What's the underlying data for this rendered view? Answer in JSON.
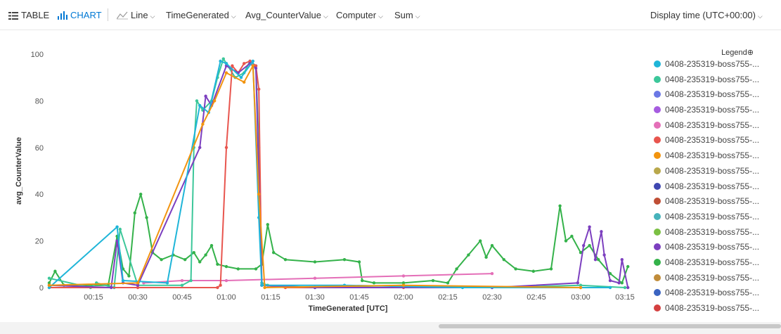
{
  "toolbar": {
    "table_label": "TABLE",
    "chart_label": "CHART",
    "line_label": "Line",
    "x_field": "TimeGenerated",
    "y_field": "Avg_CounterValue",
    "split_field": "Computer",
    "aggregation": "Sum",
    "display_time": "Display time (UTC+00:00)"
  },
  "legend": {
    "title": "Legend",
    "items": [
      {
        "label": "0408-235319-boss755-...",
        "color": "#1fb5d8"
      },
      {
        "label": "0408-235319-boss755-...",
        "color": "#3cc79a"
      },
      {
        "label": "0408-235319-boss755-...",
        "color": "#6b78e5"
      },
      {
        "label": "0408-235319-boss755-...",
        "color": "#a65ce0"
      },
      {
        "label": "0408-235319-boss755-...",
        "color": "#e46fb8"
      },
      {
        "label": "0408-235319-boss755-...",
        "color": "#e8554e"
      },
      {
        "label": "0408-235319-boss755-...",
        "color": "#f2940f"
      },
      {
        "label": "0408-235319-boss755-...",
        "color": "#b9a84b"
      },
      {
        "label": "0408-235319-boss755-...",
        "color": "#3f47b1"
      },
      {
        "label": "0408-235319-boss755-...",
        "color": "#bf4e35"
      },
      {
        "label": "0408-235319-boss755-...",
        "color": "#47b3bb"
      },
      {
        "label": "0408-235319-boss755-...",
        "color": "#7bc043"
      },
      {
        "label": "0408-235319-boss755-...",
        "color": "#7c3fbf"
      },
      {
        "label": "0408-235319-boss755-...",
        "color": "#34b24a"
      },
      {
        "label": "0408-235319-boss755-...",
        "color": "#c08c3a"
      },
      {
        "label": "0408-235319-boss755-...",
        "color": "#3b64c1"
      },
      {
        "label": "0408-235319-boss755-...",
        "color": "#d44040"
      }
    ]
  },
  "chart_data": {
    "type": "line",
    "xlabel": "TimeGenerated [UTC]",
    "ylabel": "avg_CounterValue",
    "ylim": [
      0,
      100
    ],
    "yticks": [
      0,
      20,
      40,
      60,
      80,
      100
    ],
    "xlim": [
      "00:00",
      "03:20"
    ],
    "xticks": [
      "00:15",
      "00:30",
      "00:45",
      "01:00",
      "01:15",
      "01:30",
      "01:45",
      "02:00",
      "02:15",
      "02:30",
      "02:45",
      "03:00",
      "03:15"
    ],
    "grid": false,
    "legend_position": "right",
    "series": [
      {
        "color": "#34b24a",
        "x": [
          "00:00",
          "00:02",
          "00:05",
          "00:20",
          "00:23",
          "00:25",
          "00:27",
          "00:29",
          "00:31",
          "00:33",
          "00:35",
          "00:38",
          "00:42",
          "00:46",
          "00:49",
          "00:51",
          "00:53",
          "00:55",
          "00:57",
          "01:00",
          "01:04",
          "01:10",
          "01:12",
          "01:14",
          "01:16",
          "01:20",
          "01:30",
          "01:40",
          "01:45",
          "01:46",
          "01:50",
          "02:00",
          "02:10",
          "02:15",
          "02:18",
          "02:22",
          "02:26",
          "02:28",
          "02:30",
          "02:34",
          "02:38",
          "02:44",
          "02:50",
          "02:53",
          "02:55",
          "02:57",
          "03:00",
          "03:03",
          "03:06",
          "03:10",
          "03:14",
          "03:16"
        ],
        "y": [
          2,
          7,
          1,
          1,
          22,
          8,
          5,
          32,
          40,
          30,
          15,
          12,
          14,
          12,
          15,
          11,
          14,
          18,
          10,
          9,
          8,
          8,
          10,
          27,
          15,
          12,
          11,
          12,
          11,
          3,
          2,
          2,
          3,
          2,
          8,
          14,
          20,
          13,
          18,
          12,
          8,
          7,
          8,
          35,
          20,
          22,
          15,
          18,
          12,
          6,
          2,
          9
        ]
      },
      {
        "color": "#e46fb8",
        "x": [
          "00:32",
          "00:45",
          "01:00",
          "01:30",
          "02:00",
          "02:30"
        ],
        "y": [
          2,
          3,
          3,
          4,
          5,
          6
        ]
      },
      {
        "color": "#3cc79a",
        "x": [
          "00:00",
          "00:14",
          "00:16",
          "00:22",
          "00:24",
          "00:30",
          "00:45",
          "00:48",
          "00:49",
          "00:50",
          "00:52",
          "00:55",
          "00:57",
          "00:59",
          "01:00",
          "01:03",
          "01:06",
          "01:08",
          "01:10",
          "01:11",
          "01:12",
          "01:14",
          "01:30",
          "02:00",
          "02:30",
          "03:00",
          "03:15"
        ],
        "y": [
          4,
          0,
          2,
          0,
          25,
          1,
          1,
          3,
          60,
          80,
          76,
          80,
          90,
          98,
          96,
          90,
          92,
          97,
          95,
          60,
          2,
          1,
          0,
          1,
          0,
          1,
          0
        ]
      },
      {
        "color": "#e8554e",
        "x": [
          "00:00",
          "00:30",
          "00:57",
          "00:58",
          "01:00",
          "01:02",
          "01:04",
          "01:06",
          "01:08",
          "01:10",
          "01:11",
          "01:12",
          "01:20",
          "02:00",
          "03:00"
        ],
        "y": [
          0,
          0,
          0,
          1,
          60,
          95,
          92,
          96,
          97,
          95,
          85,
          1,
          0,
          0,
          0
        ]
      },
      {
        "color": "#7c3fbf",
        "x": [
          "00:00",
          "00:21",
          "00:23",
          "00:25",
          "00:30",
          "00:51",
          "00:53",
          "00:55",
          "01:00",
          "01:04",
          "01:08",
          "01:10",
          "01:12",
          "01:30",
          "02:30",
          "02:59",
          "03:01",
          "03:03",
          "03:05",
          "03:07",
          "03:08",
          "03:10",
          "03:13",
          "03:14",
          "03:16"
        ],
        "y": [
          1,
          0,
          20,
          2,
          1,
          60,
          82,
          78,
          95,
          92,
          96,
          94,
          1,
          0,
          0,
          2,
          18,
          26,
          12,
          24,
          14,
          3,
          2,
          12,
          0
        ]
      },
      {
        "color": "#1fb5d8",
        "x": [
          "00:00",
          "00:23",
          "00:25",
          "00:40",
          "00:51",
          "00:54",
          "00:58",
          "01:00",
          "01:05",
          "01:09",
          "01:11",
          "01:12",
          "01:40",
          "02:20",
          "03:10"
        ],
        "y": [
          0,
          26,
          3,
          2,
          78,
          75,
          97,
          96,
          90,
          97,
          30,
          1,
          1,
          0,
          0
        ]
      },
      {
        "color": "#f2940f",
        "x": [
          "00:00",
          "00:30",
          "00:52",
          "00:56",
          "01:00",
          "01:06",
          "01:09",
          "01:11",
          "01:13",
          "02:00",
          "03:00"
        ],
        "y": [
          1,
          2,
          70,
          80,
          92,
          88,
          95,
          40,
          0,
          1,
          0
        ]
      }
    ]
  }
}
